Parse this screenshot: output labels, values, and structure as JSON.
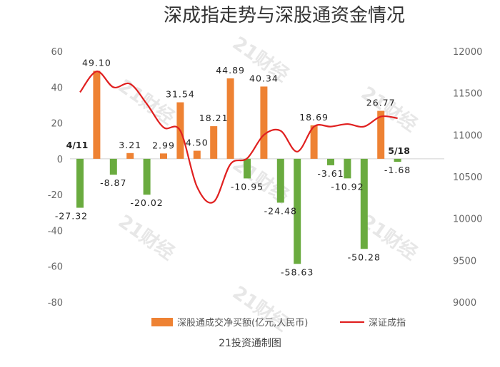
{
  "chart_data": {
    "type": "bar",
    "title": "深成指走势与深股通资金情况",
    "source": "21投资通制图",
    "watermark": "21财经",
    "series": [
      {
        "name": "深股通成交净买额(亿元,人民币)",
        "type": "bar",
        "axis": "left",
        "color_positive": "#ee8233",
        "color_negative": "#6aab3f",
        "values": [
          -27.32,
          49.1,
          -8.87,
          3.21,
          -20.02,
          2.99,
          31.54,
          4.5,
          18.21,
          44.89,
          -10.95,
          40.34,
          -24.48,
          -58.63,
          18.69,
          -3.61,
          -10.92,
          -50.28,
          26.77,
          -1.68
        ],
        "labels": [
          "-27.32",
          "49.10",
          "-8.87",
          "3.21",
          "-20.02",
          "2.99",
          "31.54",
          "4.50",
          "18.21",
          "44.89",
          "-10.95",
          "40.34",
          "-24.48",
          "-58.63",
          "18.69",
          "-3.61",
          "-10.92",
          "-50.28",
          "26.77",
          "-1.68"
        ]
      },
      {
        "name": "深证成指",
        "type": "line",
        "axis": "right",
        "color": "#e02020",
        "values": [
          11510,
          11760,
          11570,
          11610,
          11370,
          11090,
          11050,
          10380,
          10200,
          10650,
          10720,
          11000,
          11050,
          10800,
          11100,
          11100,
          11130,
          11100,
          11220,
          11200
        ]
      }
    ],
    "first_label": "4/11",
    "last_label": "5/18",
    "y_left": {
      "min": -80,
      "max": 60,
      "ticks": [
        "-80",
        "-60",
        "-40",
        "-20",
        "0",
        "20",
        "40",
        "60"
      ]
    },
    "y_right": {
      "min": 9000,
      "max": 12000,
      "ticks": [
        "9000",
        "9500",
        "10000",
        "10500",
        "11000",
        "11500",
        "12000"
      ]
    },
    "legend_position": "bottom",
    "grid": false
  }
}
